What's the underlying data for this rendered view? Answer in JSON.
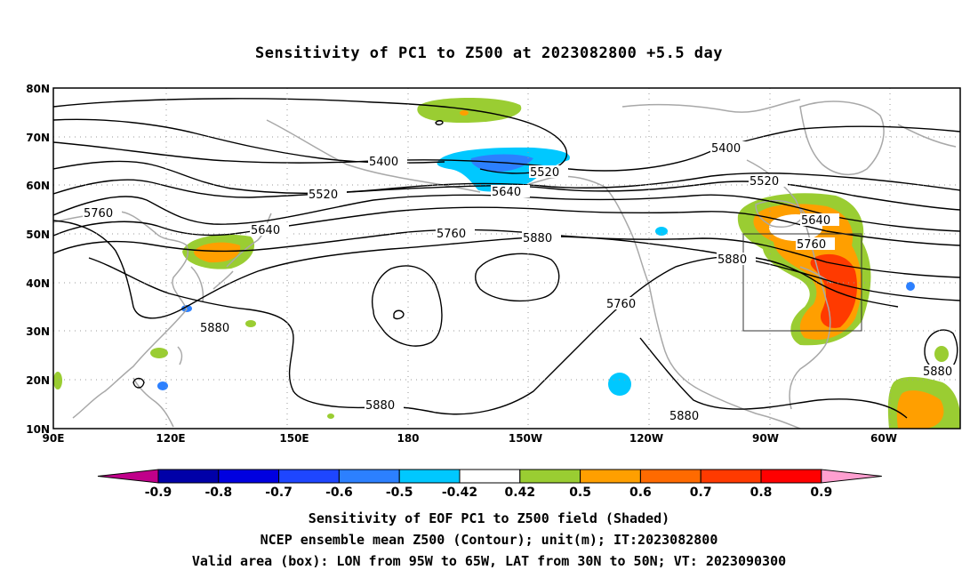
{
  "title": "Sensitivity of PC1 to Z500 at 2023082800 +5.5 day",
  "lat_labels": [
    "80N",
    "70N",
    "60N",
    "50N",
    "40N",
    "30N",
    "20N",
    "10N"
  ],
  "lon_labels": [
    "90E",
    "120E",
    "150E",
    "180",
    "150W",
    "120W",
    "90W",
    "60W"
  ],
  "contour_labels": {
    "c5400a": "5400",
    "c5400b": "5400",
    "c5520a": "5520",
    "c5520b": "5520",
    "c5520c": "5520",
    "c5640a": "5640",
    "c5640b": "5640",
    "c5640c": "5640",
    "c5760a": "5760",
    "c5760b": "5760",
    "c5760c": "5760",
    "c5760d": "5760",
    "c5880a": "5880",
    "c5880b": "5880",
    "c5880c": "5880",
    "c5880d": "5880",
    "c5880e": "5880",
    "c5880f": "5880"
  },
  "colorbar": {
    "ticks": [
      "-0.9",
      "-0.8",
      "-0.7",
      "-0.6",
      "-0.5",
      "-0.42",
      "0.42",
      "0.5",
      "0.6",
      "0.7",
      "0.8",
      "0.9"
    ],
    "colors": [
      "#c0008a",
      "#0000a8",
      "#0000e0",
      "#1e46ff",
      "#2c80ff",
      "#00c8ff",
      "#ffffff",
      "#9acd32",
      "#ff9f00",
      "#ff6a00",
      "#ff3a00",
      "#ff0000",
      "#ff9fd0"
    ]
  },
  "captions": [
    "Sensitivity of EOF PC1 to Z500 field (Shaded)",
    "NCEP ensemble mean Z500 (Contour); unit(m); IT:2023082800",
    "Valid area (box): LON from 95W to 65W, LAT from 30N to 50N; VT: 2023090300"
  ]
}
